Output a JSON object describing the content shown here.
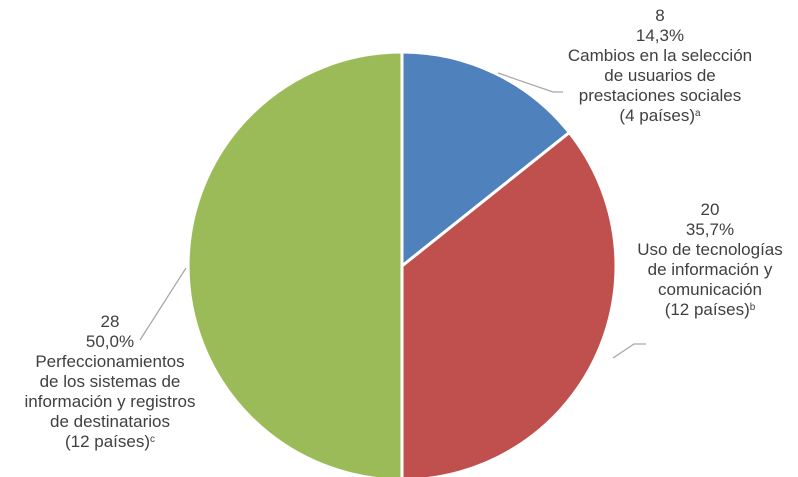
{
  "chart_data": {
    "type": "pie",
    "slices": [
      {
        "value": 8,
        "percent": "14,3%",
        "label_lines": [
          "Cambios en la selección",
          "de usuarios de",
          "prestaciones sociales"
        ],
        "count_text": "(4 países)",
        "note": "a",
        "color": "#4f81bd"
      },
      {
        "value": 20,
        "percent": "35,7%",
        "label_lines": [
          "Uso de tecnologías",
          "de información y",
          "comunicación"
        ],
        "count_text": "(12 países)",
        "note": "b",
        "color": "#c0504d"
      },
      {
        "value": 28,
        "percent": "50,0%",
        "label_lines": [
          "Perfeccionamientos",
          "de los sistemas de",
          "información y registros",
          "de destinatarios"
        ],
        "count_text": "(12 países)",
        "note": "c",
        "color": "#9bbb59"
      }
    ],
    "start_angle_deg": 0,
    "direction": "clockwise",
    "legend": "none",
    "label_style": "value, percent, category with leader lines"
  }
}
